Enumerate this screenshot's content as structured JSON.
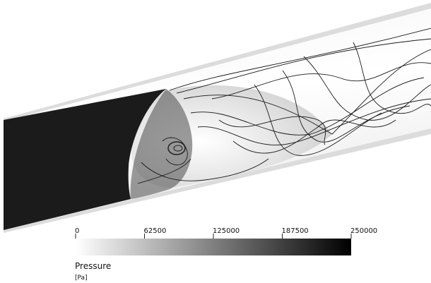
{
  "colorbar": {
    "title": "Pressure",
    "unit": "[Pa]",
    "ticks": [
      0,
      62500,
      125000,
      187500,
      250000
    ]
  }
}
